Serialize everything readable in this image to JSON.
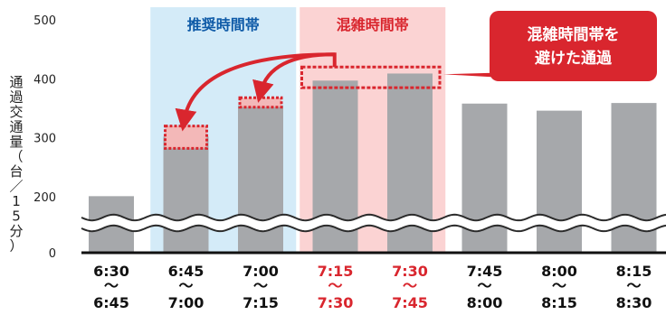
{
  "chart_data": {
    "type": "bar",
    "ylabel": "通過交通量（台／15分）",
    "y_ticks": [
      "0",
      "200",
      "300",
      "400",
      "500"
    ],
    "ylim": [
      0,
      500
    ],
    "axis_break": "between 0 and 200",
    "categories": [
      {
        "start": "6:30",
        "sep": "～",
        "end": "6:45",
        "color": "#111111"
      },
      {
        "start": "6:45",
        "sep": "～",
        "end": "7:00",
        "color": "#111111"
      },
      {
        "start": "7:00",
        "sep": "～",
        "end": "7:15",
        "color": "#111111"
      },
      {
        "start": "7:15",
        "sep": "～",
        "end": "7:30",
        "color": "#d9262e"
      },
      {
        "start": "7:30",
        "sep": "～",
        "end": "7:45",
        "color": "#d9262e"
      },
      {
        "start": "7:45",
        "sep": "～",
        "end": "8:00",
        "color": "#111111"
      },
      {
        "start": "8:00",
        "sep": "～",
        "end": "8:15",
        "color": "#111111"
      },
      {
        "start": "8:15",
        "sep": "～",
        "end": "8:30",
        "color": "#111111"
      }
    ],
    "values": [
      201,
      302,
      355,
      397,
      409,
      358,
      346,
      359
    ],
    "bar_color": "#a6a8ab",
    "shifted_extra": [
      {
        "category_index": 1,
        "from": 282,
        "to": 320
      },
      {
        "category_index": 2,
        "from": 352,
        "to": 368
      }
    ],
    "peak_block": {
      "from_index": 3,
      "to_index": 4,
      "from": 385,
      "to": 420
    },
    "zones": [
      {
        "label": "推奨時間帯",
        "from_index": 1,
        "to_index": 2,
        "fill": "#d4ebf8",
        "text_color": "#0e5aa7"
      },
      {
        "label": "混雑時間帯",
        "from_index": 3,
        "to_index": 4,
        "fill": "#fbd3d3",
        "text_color": "#d9262e"
      }
    ],
    "callout": {
      "lines": [
        "混雑時間帯を",
        "避けた通過"
      ],
      "fill": "#d9262e"
    },
    "accent_red": "#d9262e"
  }
}
